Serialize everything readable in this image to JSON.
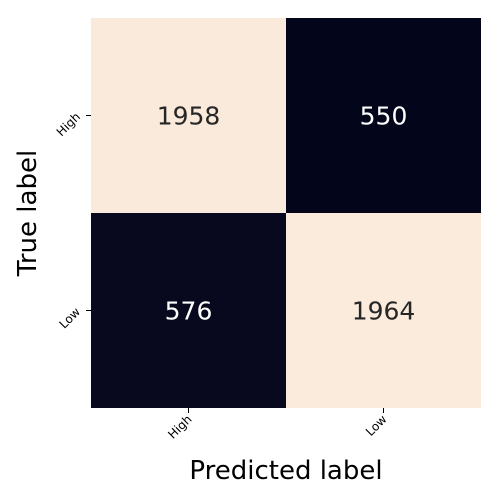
{
  "chart_data": {
    "type": "heatmap",
    "title": "",
    "xlabel": "Predicted label",
    "ylabel": "True label",
    "x_categories": [
      "High",
      "Low"
    ],
    "y_categories": [
      "High",
      "Low"
    ],
    "values": [
      [
        1958,
        550
      ],
      [
        576,
        1964
      ]
    ],
    "colorbar": false,
    "colors": {
      "high": "#faebdd",
      "low": "#03051a",
      "text_on_light": "#262626",
      "text_on_dark": "#ffffff"
    }
  }
}
